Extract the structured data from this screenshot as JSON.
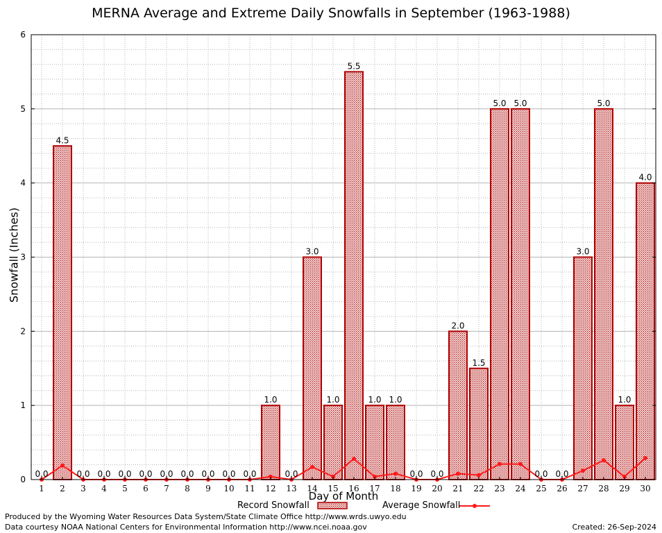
{
  "chart_data": {
    "type": "bar",
    "title": "MERNA Average and Extreme Daily Snowfalls in September (1963-1988)",
    "xlabel": "Day of Month",
    "ylabel": "Snowfall (Inches)",
    "ylim": [
      0,
      6
    ],
    "yticks": [
      "0",
      "1",
      "2",
      "3",
      "4",
      "5",
      "6"
    ],
    "categories": [
      "1",
      "2",
      "3",
      "4",
      "5",
      "6",
      "7",
      "8",
      "9",
      "10",
      "11",
      "12",
      "13",
      "14",
      "15",
      "16",
      "17",
      "18",
      "19",
      "20",
      "21",
      "22",
      "23",
      "24",
      "25",
      "26",
      "27",
      "28",
      "29",
      "30"
    ],
    "series": [
      {
        "name": "Record Snowfall",
        "values": [
          0.0,
          4.5,
          0.0,
          0.0,
          0.0,
          0.0,
          0.0,
          0.0,
          0.0,
          0.0,
          0.0,
          1.0,
          0.0,
          3.0,
          1.0,
          5.5,
          1.0,
          1.0,
          0.0,
          0.0,
          2.0,
          1.5,
          5.0,
          5.0,
          0.0,
          0.0,
          3.0,
          5.0,
          1.0,
          4.0
        ],
        "labels": [
          "0.0",
          "4.5",
          "0.0",
          "0.0",
          "0.0",
          "0.0",
          "0.0",
          "0.0",
          "0.0",
          "0.0",
          "0.0",
          "1.0",
          "0.0",
          "3.0",
          "1.0",
          "5.5",
          "1.0",
          "1.0",
          "0.0",
          "0.0",
          "2.0",
          "1.5",
          "5.0",
          "5.0",
          "0.0",
          "0.0",
          "3.0",
          "5.0",
          "1.0",
          "4.0"
        ]
      },
      {
        "name": "Average Snowfall",
        "values": [
          0.0,
          0.19,
          0.0,
          0.0,
          0.0,
          0.0,
          0.0,
          0.0,
          0.0,
          0.0,
          0.0,
          0.04,
          0.0,
          0.17,
          0.04,
          0.28,
          0.04,
          0.08,
          0.0,
          0.0,
          0.08,
          0.06,
          0.21,
          0.21,
          0.0,
          0.0,
          0.12,
          0.26,
          0.04,
          0.29
        ]
      }
    ],
    "legend": {
      "record_label": "Record Snowfall",
      "average_label": "Average Snowfall"
    },
    "colors": {
      "bar_stroke": "#b00000",
      "bar_fill": "#e6b8b8",
      "line": "#ff1a1a",
      "grid": "#b4b4b4"
    }
  },
  "footer": {
    "produced_by": "Produced by the Wyoming Water Resources Data System/State Climate Office http://www.wrds.uwyo.edu",
    "courtesy": "Data courtesy NOAA National Centers for Environmental Information http://www.ncei.noaa.gov",
    "created": "Created:  26-Sep-2024"
  }
}
